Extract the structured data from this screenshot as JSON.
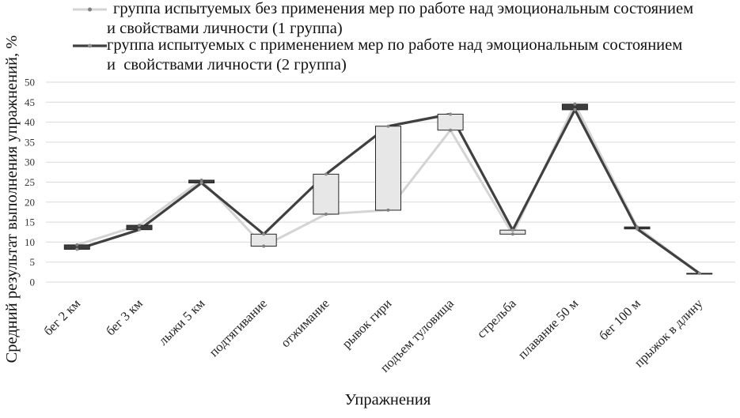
{
  "chart_data": {
    "type": "line",
    "categories": [
      "бег 2 км",
      "бег 3 км",
      "лыжи 5 км",
      "подтягивание",
      "отжимание",
      "рывок гири",
      "подъем туловища",
      "стрельба",
      "плавание 50 м",
      "бег 100 м",
      "прыжок в длину"
    ],
    "series": [
      {
        "name": "группа испытуемых без применения мер по работе над эмоциональным состоянием и свойствами личности (1 группа)",
        "color": "#d4d4d4",
        "marker_color": "#7f7f7f",
        "values": [
          9.3,
          14.2,
          25.5,
          9,
          17,
          18,
          38,
          12,
          44.5,
          13.8,
          2.2
        ]
      },
      {
        "name": "группа испытуемых с применением мер по работе над эмоциональным состоянием и  свойствами личности (2 группа)",
        "color": "#404040",
        "marker_color": "#8c8c8c",
        "values": [
          8.2,
          13.1,
          24.8,
          12,
          27,
          39,
          42,
          13,
          43.1,
          13.3,
          2.2
        ]
      }
    ],
    "up_down_bars": true,
    "up_bar_color": "#e7e7e7",
    "down_bar_color": "#3d3d3d",
    "xlabel": "Упражнения",
    "ylabel": "Средний результат выполнения упражнений, %",
    "ylim": [
      0,
      50
    ],
    "yticks": [
      0,
      5,
      10,
      15,
      20,
      25,
      30,
      35,
      40,
      45,
      50
    ],
    "grid": true,
    "grid_color": "#d9d9d9",
    "legend_position": "top"
  }
}
